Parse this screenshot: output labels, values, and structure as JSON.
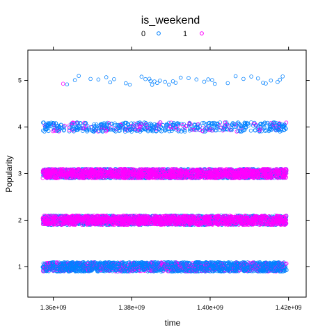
{
  "chart_data": {
    "type": "scatter",
    "legend": {
      "title": "is_weekend",
      "placement": "top",
      "entries": [
        {
          "label": "0",
          "color": "#0080ff"
        },
        {
          "label": "1",
          "color": "#ff00ff"
        }
      ]
    },
    "xlabel": "time",
    "ylabel": "Popularity",
    "xlim": [
      1353500000.0,
      1424500000.0
    ],
    "ylim": [
      0.35,
      5.65
    ],
    "xticks": [
      {
        "value": 1360000000.0,
        "label": "1.36e+09"
      },
      {
        "value": 1380000000.0,
        "label": "1.38e+09"
      },
      {
        "value": 1400000000.0,
        "label": "1.40e+09"
      },
      {
        "value": 1420000000.0,
        "label": "1.42e+09"
      }
    ],
    "yticks": [
      {
        "value": 1,
        "label": "1"
      },
      {
        "value": 2,
        "label": "2"
      },
      {
        "value": 3,
        "label": "3"
      },
      {
        "value": 4,
        "label": "4"
      },
      {
        "value": 5,
        "label": "5"
      }
    ],
    "grid": false,
    "marker": "open-circle",
    "jitter_y": 0.1,
    "x_range_of_points": [
      1357300000.0,
      1419500000.0
    ],
    "series": [
      {
        "name": "0",
        "color": "#0080ff",
        "bands": [
          {
            "y": 1,
            "density": "very-high"
          },
          {
            "y": 2,
            "density": "very-high"
          },
          {
            "y": 3,
            "density": "very-high"
          },
          {
            "y": 4,
            "density": "medium"
          }
        ],
        "points_at_5": [
          1363500000.0,
          1365500000.0,
          1366500000.0,
          1369500000.0,
          1371500000.0,
          1373500000.0,
          1374500000.0,
          1375500000.0,
          1378500000.0,
          1379500000.0,
          1382500000.0,
          1383500000.0,
          1384500000.0,
          1384800000.0,
          1385200000.0,
          1385800000.0,
          1386500000.0,
          1387200000.0,
          1388500000.0,
          1389500000.0,
          1390500000.0,
          1391200000.0,
          1392500000.0,
          1394500000.0,
          1396500000.0,
          1398500000.0,
          1399500000.0,
          1400500000.0,
          1401200000.0,
          1404500000.0,
          1406500000.0,
          1408500000.0,
          1410500000.0,
          1412200000.0,
          1413500000.0,
          1414200000.0,
          1415500000.0,
          1417200000.0,
          1417800000.0,
          1418500000.0
        ]
      },
      {
        "name": "1",
        "color": "#ff00ff",
        "bands": [
          {
            "y": 1,
            "density": "medium"
          },
          {
            "y": 2,
            "density": "very-high"
          },
          {
            "y": 3,
            "density": "very-high"
          },
          {
            "y": 4,
            "density": "low"
          }
        ],
        "points_at_5": [
          1362500000.0
        ]
      }
    ]
  }
}
